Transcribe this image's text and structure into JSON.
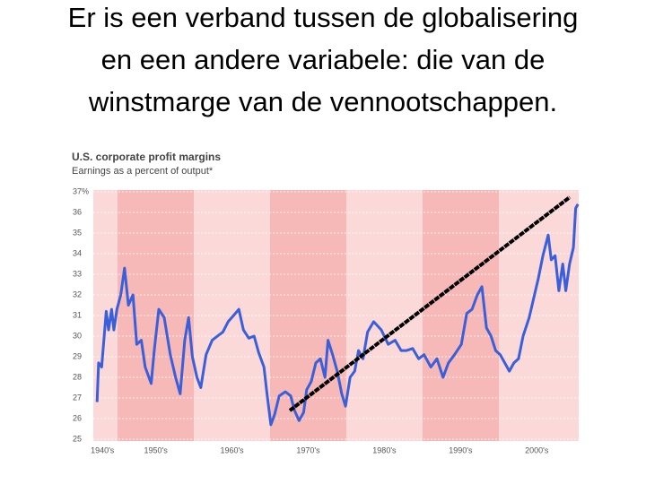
{
  "heading": [
    "Er is een verband tussen de globalisering",
    "en een andere variabele: die van de",
    "winstmarge van de vennootschappen."
  ],
  "chart_data": {
    "type": "line",
    "title": "U.S. corporate profit margins",
    "subtitle": "Earnings as a percent of output*",
    "x": [
      1947.3,
      1947.5,
      1947.9,
      1948.5,
      1948.8,
      1949.2,
      1949.5,
      1949.9,
      1950.4,
      1950.9,
      1951.4,
      1952.0,
      1952.5,
      1953.1,
      1953.6,
      1954.4,
      1954.8,
      1955.4,
      1956.1,
      1956.9,
      1957.6,
      1958.2,
      1958.8,
      1959.3,
      1959.8,
      1960.4,
      1960.9,
      1961.6,
      1962.4,
      1963.1,
      1963.8,
      1964.5,
      1965.2,
      1965.9,
      1966.5,
      1967.2,
      1967.9,
      1968.5,
      1969.2,
      1969.6,
      1970.1,
      1970.6,
      1971.2,
      1972.0,
      1972.7,
      1973.2,
      1973.8,
      1974.4,
      1974.8,
      1975.4,
      1976.0,
      1976.6,
      1977.2,
      1977.6,
      1978.2,
      1978.8,
      1979.4,
      1979.9,
      1980.5,
      1981.1,
      1981.6,
      1982.2,
      1982.8,
      1983.6,
      1984.6,
      1985.5,
      1986.4,
      1987.2,
      1987.9,
      1988.7,
      1989.5,
      1990.2,
      1991.1,
      1991.9,
      1992.7,
      1993.4,
      1994.2,
      1995.1,
      1995.8,
      1996.5,
      1997.2,
      1997.8,
      1998.4,
      1999.0,
      1999.6,
      2000.2,
      2000.8,
      2001.4,
      2002.0,
      2002.6,
      2003.2,
      2004.0,
      2004.7,
      2005.2,
      2005.8,
      2006.5,
      2006.9,
      2007.4,
      2007.9,
      2008.4,
      2008.8,
      2009.3,
      2009.8,
      2010.1,
      2010.4
    ],
    "series": [
      {
        "name": "Earnings as a percent of output",
        "color": "#3a5fd9",
        "values": [
          26.8,
          28.7,
          28.5,
          31.2,
          30.3,
          31.3,
          30.3,
          31.3,
          32.0,
          33.3,
          31.5,
          32.0,
          29.6,
          29.8,
          28.5,
          27.7,
          29.3,
          31.3,
          30.9,
          29.1,
          28.0,
          27.2,
          29.8,
          30.9,
          29.0,
          28.0,
          27.5,
          29.1,
          29.8,
          30.0,
          30.2,
          30.7,
          31.0,
          31.3,
          30.3,
          29.9,
          30.0,
          29.2,
          28.5,
          27.2,
          25.7,
          26.2,
          27.1,
          27.3,
          27.1,
          26.4,
          25.9,
          26.3,
          27.4,
          27.8,
          28.7,
          28.9,
          28.0,
          29.8,
          29.1,
          28.3,
          27.2,
          26.6,
          28.0,
          28.3,
          29.3,
          28.9,
          30.2,
          30.7,
          30.3,
          29.6,
          29.8,
          29.3,
          29.3,
          29.4,
          28.9,
          29.1,
          28.5,
          28.9,
          28.0,
          28.7,
          29.1,
          29.6,
          31.1,
          31.3,
          32.0,
          32.4,
          30.4,
          30.0,
          29.3,
          29.1,
          28.7,
          28.3,
          28.7,
          28.9,
          30.0,
          30.9,
          32.0,
          32.8,
          33.9,
          34.9,
          33.7,
          33.9,
          32.2,
          33.5,
          32.2,
          33.5,
          34.3,
          36.2,
          36.4
        ]
      }
    ],
    "xlim": [
      1946.8,
      2010.5
    ],
    "xticks": [
      {
        "value": 1948,
        "label": "1940's"
      },
      {
        "value": 1955,
        "label": "1950's"
      },
      {
        "value": 1965,
        "label": "1960's"
      },
      {
        "value": 1975,
        "label": "1970's"
      },
      {
        "value": 1985,
        "label": "1980's"
      },
      {
        "value": 1995,
        "label": "1990's"
      },
      {
        "value": 2005,
        "label": "2000's"
      }
    ],
    "ylim": [
      25,
      37
    ],
    "yticks": [
      25,
      26,
      27,
      28,
      29,
      30,
      31,
      32,
      33,
      34,
      35,
      36,
      {
        "value": 37,
        "label": "37%"
      }
    ],
    "grid": true
  }
}
